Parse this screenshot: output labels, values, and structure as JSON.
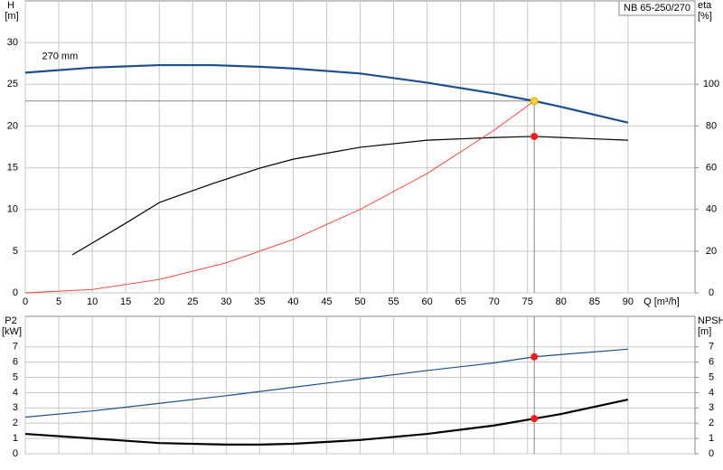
{
  "chart_data": [
    {
      "type": "line",
      "title": "NB 65-250/270",
      "curve_label": "270 mm",
      "y_label": "H",
      "y_unit": "[m]",
      "y2_label": "eta",
      "y2_unit": "[%]",
      "x_label": "Q [m³/h]",
      "xlim": [
        0,
        100
      ],
      "xticks": [
        0,
        5,
        10,
        15,
        20,
        25,
        30,
        35,
        40,
        45,
        50,
        55,
        60,
        65,
        70,
        75,
        80,
        85,
        90
      ],
      "ylim": [
        0,
        35
      ],
      "yticks": [
        0,
        5,
        10,
        15,
        20,
        25,
        30
      ],
      "y2lim": [
        0,
        140
      ],
      "y2ticks": [
        0,
        20,
        40,
        60,
        80,
        100
      ],
      "grid": true,
      "series": [
        {
          "color": "#1f4e8c",
          "line_width": 2.2,
          "x": [
            0,
            10,
            20,
            28,
            35,
            40,
            50,
            60,
            70,
            76,
            80,
            90
          ],
          "values": [
            26.4,
            27.0,
            27.3,
            27.3,
            27.1,
            26.9,
            26.3,
            25.2,
            23.9,
            23.0,
            22.3,
            20.4
          ]
        },
        {
          "color": "#000000",
          "line_width": 1.2,
          "axis": "y2",
          "x": [
            7,
            15,
            20,
            28,
            35,
            40,
            50,
            60,
            70,
            76,
            80,
            90
          ],
          "values": [
            18.2,
            33.4,
            43.3,
            52.4,
            59.8,
            64.1,
            69.8,
            73.2,
            74.5,
            75,
            74.5,
            73.2
          ]
        },
        {
          "color": "#ff3333",
          "line_width": 0.9,
          "x": [
            0,
            10,
            20,
            30,
            40,
            50,
            60,
            70,
            76
          ],
          "values": [
            0,
            0.4,
            1.6,
            3.6,
            6.4,
            10,
            14.3,
            19.5,
            23
          ]
        }
      ],
      "points": [
        {
          "x": 76,
          "y": 23,
          "color": "#ffd21f",
          "guides": true
        },
        {
          "x": 76,
          "y": 75,
          "axis": "y2",
          "color": "#ff1a1a"
        }
      ]
    },
    {
      "type": "line",
      "y_label": "P2",
      "y_unit": "[kW]",
      "y2_label": "NPSH",
      "y2_unit": "[m]",
      "xlim": [
        0,
        100
      ],
      "xticks": [
        0,
        5,
        10,
        15,
        20,
        25,
        30,
        35,
        40,
        45,
        50,
        55,
        60,
        65,
        70,
        75,
        80,
        85,
        90
      ],
      "ylim": [
        0,
        9
      ],
      "yticks": [
        0,
        1,
        2,
        3,
        4,
        5,
        6,
        7
      ],
      "y2lim": [
        0,
        9
      ],
      "y2ticks": [
        0,
        1,
        2,
        3,
        4,
        5,
        6,
        7
      ],
      "grid": true,
      "vline": 76,
      "series": [
        {
          "color": "#1f4e8c",
          "line_width": 1.2,
          "x": [
            0,
            10,
            20,
            30,
            40,
            50,
            60,
            70,
            76,
            80,
            90
          ],
          "values": [
            2.4,
            2.8,
            3.3,
            3.8,
            4.35,
            4.9,
            5.45,
            5.95,
            6.35,
            6.5,
            6.85
          ]
        },
        {
          "color": "#000000",
          "line_width": 2.2,
          "axis": "y2",
          "x": [
            0,
            10,
            20,
            30,
            35,
            40,
            50,
            60,
            70,
            76,
            80,
            90
          ],
          "values": [
            1.3,
            1.0,
            0.7,
            0.6,
            0.6,
            0.65,
            0.9,
            1.3,
            1.85,
            2.3,
            2.6,
            3.55
          ]
        }
      ],
      "points": [
        {
          "x": 76,
          "y": 6.35,
          "color": "#ff1a1a"
        },
        {
          "x": 76,
          "y": 2.3,
          "axis": "y2",
          "color": "#ff1a1a"
        }
      ]
    }
  ]
}
